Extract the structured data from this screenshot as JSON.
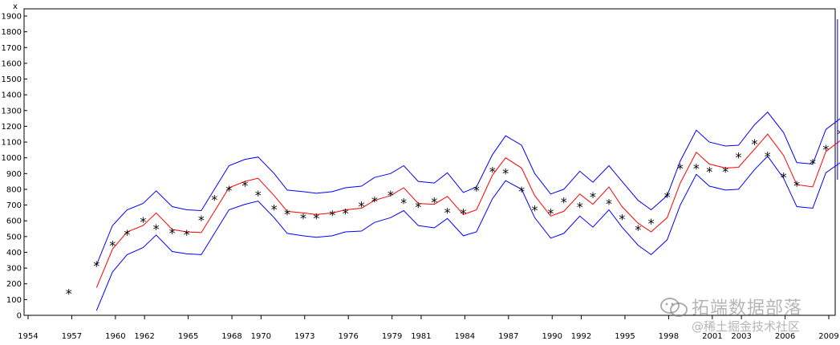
{
  "chart_data": {
    "type": "line",
    "title": "",
    "ylabel": "x",
    "xlabel": "",
    "xlim": [
      1954,
      2009
    ],
    "ylim": [
      0,
      1900
    ],
    "x_ticks": [
      1954,
      1957,
      1960,
      1962,
      1965,
      1968,
      1970,
      1973,
      1976,
      1979,
      1981,
      1984,
      1987,
      1990,
      1992,
      1995,
      1998,
      2001,
      2003,
      2006,
      2009
    ],
    "y_ticks": [
      0,
      100,
      200,
      300,
      400,
      500,
      600,
      700,
      800,
      900,
      1000,
      1100,
      1200,
      1300,
      1400,
      1500,
      1600,
      1700,
      1800,
      1900
    ],
    "grid": false,
    "colors": {
      "observed": "#000000",
      "forecast": "#ff0000",
      "bounds": "#0000ff",
      "axis": "#000000"
    },
    "observed": {
      "marker": "*",
      "points": [
        [
          1956.8,
          145
        ],
        [
          1958.7,
          320
        ],
        [
          1959.8,
          450
        ],
        [
          1960.8,
          520
        ],
        [
          1961.9,
          600
        ],
        [
          1962.8,
          555
        ],
        [
          1963.9,
          530
        ],
        [
          1964.9,
          520
        ],
        [
          1965.9,
          610
        ],
        [
          1966.8,
          740
        ],
        [
          1967.8,
          800
        ],
        [
          1968.9,
          830
        ],
        [
          1969.8,
          770
        ],
        [
          1970.9,
          680
        ],
        [
          1971.8,
          650
        ],
        [
          1972.9,
          625
        ],
        [
          1973.8,
          625
        ],
        [
          1974.9,
          645
        ],
        [
          1975.8,
          655
        ],
        [
          1976.9,
          700
        ],
        [
          1977.8,
          730
        ],
        [
          1978.9,
          770
        ],
        [
          1979.8,
          720
        ],
        [
          1980.8,
          695
        ],
        [
          1981.9,
          725
        ],
        [
          1982.8,
          660
        ],
        [
          1983.9,
          655
        ],
        [
          1984.8,
          800
        ],
        [
          1985.9,
          920
        ],
        [
          1986.8,
          910
        ],
        [
          1987.9,
          795
        ],
        [
          1988.8,
          675
        ],
        [
          1989.9,
          655
        ],
        [
          1990.8,
          725
        ],
        [
          1991.9,
          695
        ],
        [
          1992.8,
          760
        ],
        [
          1993.9,
          715
        ],
        [
          1994.8,
          620
        ],
        [
          1995.9,
          550
        ],
        [
          1996.8,
          590
        ],
        [
          1997.9,
          760
        ],
        [
          1998.8,
          940
        ],
        [
          1999.9,
          940
        ],
        [
          2000.8,
          920
        ],
        [
          2001.9,
          920
        ],
        [
          2002.8,
          1010
        ],
        [
          2003.9,
          1095
        ],
        [
          2004.8,
          1015
        ],
        [
          2005.9,
          885
        ],
        [
          2006.8,
          830
        ],
        [
          2007.9,
          970
        ],
        [
          2008.8,
          1060
        ],
        [
          2009.8,
          1160
        ]
      ]
    },
    "series": [
      {
        "role": "forecast",
        "color": "#ff0000",
        "points": [
          [
            1958.7,
            175
          ],
          [
            1959.8,
            420
          ],
          [
            1960.8,
            530
          ],
          [
            1961.9,
            570
          ],
          [
            1962.8,
            650
          ],
          [
            1963.9,
            545
          ],
          [
            1964.9,
            530
          ],
          [
            1965.9,
            525
          ],
          [
            1966.8,
            660
          ],
          [
            1967.8,
            810
          ],
          [
            1968.9,
            850
          ],
          [
            1969.8,
            870
          ],
          [
            1970.9,
            760
          ],
          [
            1971.8,
            660
          ],
          [
            1972.9,
            650
          ],
          [
            1973.8,
            640
          ],
          [
            1974.9,
            650
          ],
          [
            1975.8,
            670
          ],
          [
            1976.9,
            680
          ],
          [
            1977.8,
            730
          ],
          [
            1978.9,
            760
          ],
          [
            1979.8,
            810
          ],
          [
            1980.8,
            710
          ],
          [
            1981.9,
            705
          ],
          [
            1982.8,
            755
          ],
          [
            1983.9,
            640
          ],
          [
            1984.8,
            670
          ],
          [
            1985.9,
            890
          ],
          [
            1986.8,
            1000
          ],
          [
            1987.9,
            935
          ],
          [
            1988.8,
            760
          ],
          [
            1989.9,
            630
          ],
          [
            1990.8,
            660
          ],
          [
            1991.9,
            770
          ],
          [
            1992.8,
            705
          ],
          [
            1993.9,
            815
          ],
          [
            1994.8,
            690
          ],
          [
            1995.9,
            585
          ],
          [
            1996.8,
            530
          ],
          [
            1997.9,
            620
          ],
          [
            1998.8,
            840
          ],
          [
            1999.9,
            1035
          ],
          [
            2000.8,
            960
          ],
          [
            2001.9,
            935
          ],
          [
            2002.8,
            940
          ],
          [
            2003.9,
            1055
          ],
          [
            2004.8,
            1150
          ],
          [
            2005.9,
            1015
          ],
          [
            2006.8,
            830
          ],
          [
            2007.9,
            815
          ],
          [
            2008.8,
            1040
          ],
          [
            2009.8,
            1110
          ]
        ]
      },
      {
        "role": "upper-bound",
        "color": "#0000ff",
        "points": [
          [
            1958.7,
            320
          ],
          [
            1959.8,
            570
          ],
          [
            1960.8,
            670
          ],
          [
            1961.9,
            710
          ],
          [
            1962.8,
            790
          ],
          [
            1963.9,
            690
          ],
          [
            1964.9,
            670
          ],
          [
            1965.9,
            665
          ],
          [
            1966.8,
            800
          ],
          [
            1967.8,
            950
          ],
          [
            1968.9,
            990
          ],
          [
            1969.8,
            1005
          ],
          [
            1970.9,
            900
          ],
          [
            1971.8,
            795
          ],
          [
            1972.9,
            785
          ],
          [
            1973.8,
            775
          ],
          [
            1974.9,
            785
          ],
          [
            1975.8,
            810
          ],
          [
            1976.9,
            820
          ],
          [
            1977.8,
            875
          ],
          [
            1978.9,
            900
          ],
          [
            1979.8,
            950
          ],
          [
            1980.8,
            850
          ],
          [
            1981.9,
            840
          ],
          [
            1982.8,
            905
          ],
          [
            1983.9,
            780
          ],
          [
            1984.8,
            815
          ],
          [
            1985.9,
            1020
          ],
          [
            1986.8,
            1140
          ],
          [
            1987.9,
            1080
          ],
          [
            1988.8,
            900
          ],
          [
            1989.9,
            770
          ],
          [
            1990.8,
            800
          ],
          [
            1991.9,
            915
          ],
          [
            1992.8,
            845
          ],
          [
            1993.9,
            950
          ],
          [
            1994.8,
            850
          ],
          [
            1995.9,
            730
          ],
          [
            1996.8,
            670
          ],
          [
            1997.9,
            760
          ],
          [
            1998.8,
            980
          ],
          [
            1999.9,
            1175
          ],
          [
            2000.8,
            1100
          ],
          [
            2001.9,
            1075
          ],
          [
            2002.8,
            1080
          ],
          [
            2003.9,
            1210
          ],
          [
            2004.8,
            1290
          ],
          [
            2005.9,
            1160
          ],
          [
            2006.8,
            970
          ],
          [
            2007.9,
            960
          ],
          [
            2008.8,
            1180
          ],
          [
            2009.8,
            1250
          ]
        ]
      },
      {
        "role": "lower-bound",
        "color": "#0000ff",
        "points": [
          [
            1958.7,
            30
          ],
          [
            1959.8,
            275
          ],
          [
            1960.8,
            385
          ],
          [
            1961.9,
            430
          ],
          [
            1962.8,
            510
          ],
          [
            1963.9,
            405
          ],
          [
            1964.9,
            390
          ],
          [
            1965.9,
            385
          ],
          [
            1966.8,
            520
          ],
          [
            1967.8,
            670
          ],
          [
            1968.9,
            705
          ],
          [
            1969.8,
            725
          ],
          [
            1970.9,
            620
          ],
          [
            1971.8,
            520
          ],
          [
            1972.9,
            505
          ],
          [
            1973.8,
            495
          ],
          [
            1974.9,
            505
          ],
          [
            1975.8,
            530
          ],
          [
            1976.9,
            535
          ],
          [
            1977.8,
            590
          ],
          [
            1978.9,
            620
          ],
          [
            1979.8,
            665
          ],
          [
            1980.8,
            570
          ],
          [
            1981.9,
            555
          ],
          [
            1982.8,
            615
          ],
          [
            1983.9,
            505
          ],
          [
            1984.8,
            530
          ],
          [
            1985.9,
            740
          ],
          [
            1986.8,
            855
          ],
          [
            1987.9,
            800
          ],
          [
            1988.8,
            620
          ],
          [
            1989.9,
            490
          ],
          [
            1990.8,
            520
          ],
          [
            1991.9,
            630
          ],
          [
            1992.8,
            560
          ],
          [
            1993.9,
            670
          ],
          [
            1994.8,
            560
          ],
          [
            1995.9,
            445
          ],
          [
            1996.8,
            385
          ],
          [
            1997.9,
            480
          ],
          [
            1998.8,
            700
          ],
          [
            1999.9,
            895
          ],
          [
            2000.8,
            820
          ],
          [
            2001.9,
            795
          ],
          [
            2002.8,
            800
          ],
          [
            2003.9,
            925
          ],
          [
            2004.8,
            1010
          ],
          [
            2005.9,
            870
          ],
          [
            2006.8,
            690
          ],
          [
            2007.9,
            680
          ],
          [
            2008.8,
            905
          ],
          [
            2009.8,
            970
          ]
        ]
      }
    ],
    "reference_segment": {
      "x": 2009.6,
      "y": [
        860,
        1880
      ],
      "color": "#0000ff"
    }
  },
  "watermark": {
    "line1": "拓端数据部落",
    "line2": "@稀土掘金技术社区",
    "icon": "wechat-icon"
  }
}
